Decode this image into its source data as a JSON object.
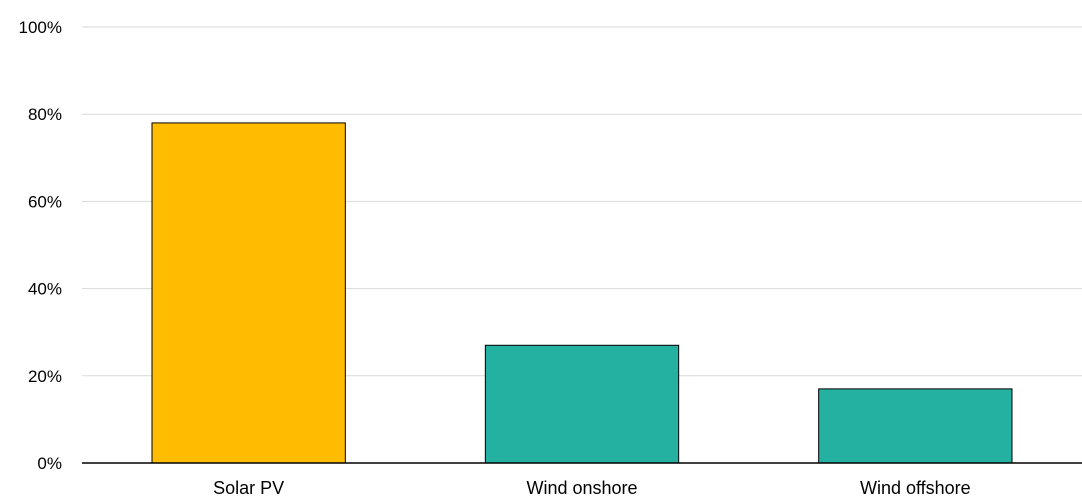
{
  "chart_data": {
    "type": "bar",
    "title": "",
    "xlabel": "",
    "ylabel": "",
    "categories": [
      "Solar PV",
      "Wind onshore",
      "Wind offshore"
    ],
    "values": [
      78,
      27,
      17
    ],
    "bar_colors": [
      "#FFBC00",
      "#24B1A1",
      "#24B1A1"
    ],
    "ylim": [
      0,
      100
    ],
    "yticks": [
      0,
      20,
      40,
      60,
      80,
      100
    ],
    "ytick_labels": [
      "0%",
      "20%",
      "40%",
      "60%",
      "80%",
      "100%"
    ],
    "grid": true,
    "legend": "none"
  }
}
